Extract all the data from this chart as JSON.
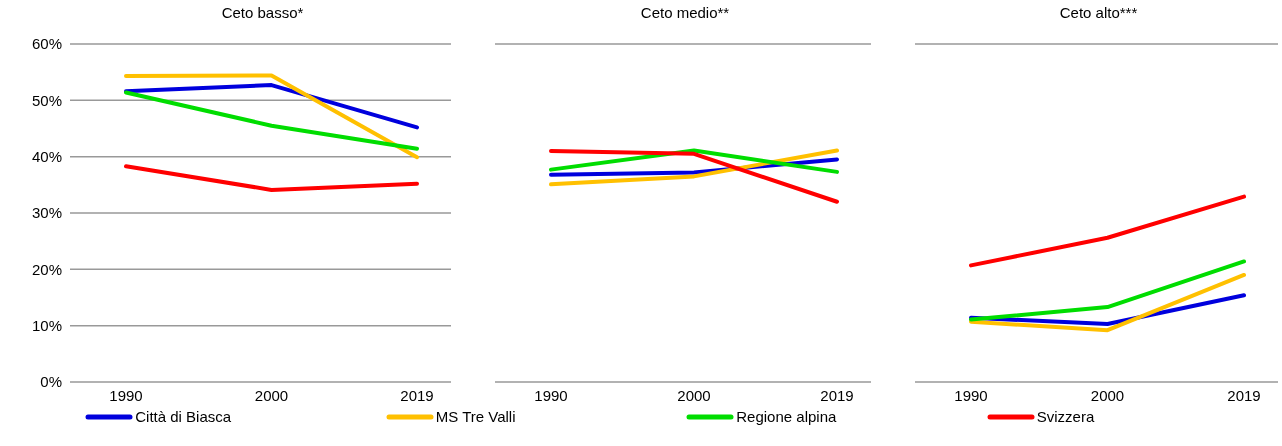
{
  "chart_data": [
    {
      "type": "line",
      "title": "Ceto basso*",
      "categories": [
        "1990",
        "2000",
        "2019"
      ],
      "series": [
        {
          "name": "Città di Biasca",
          "color": "#0000dd",
          "values": [
            51.6,
            52.7,
            45.2
          ]
        },
        {
          "name": "MS Tre Valli",
          "color": "#ffc000",
          "values": [
            54.3,
            54.4,
            39.9
          ]
        },
        {
          "name": "Regione alpina",
          "color": "#00dd00",
          "values": [
            51.4,
            45.5,
            41.4
          ]
        },
        {
          "name": "Svizzera",
          "color": "#ff0000",
          "values": [
            38.3,
            34.1,
            35.2
          ]
        }
      ],
      "ylim": [
        0,
        60
      ],
      "yticks": [
        {
          "value": 0,
          "label": "0%"
        },
        {
          "value": 10,
          "label": "10%"
        },
        {
          "value": 20,
          "label": "20%"
        },
        {
          "value": 30,
          "label": "30%"
        },
        {
          "value": 40,
          "label": "40%"
        },
        {
          "value": 50,
          "label": "50%"
        },
        {
          "value": 60,
          "label": "60%"
        }
      ],
      "grid": "y",
      "legend": "bottom",
      "marker": "none",
      "line_style": "solid"
    },
    {
      "type": "line",
      "title": "Ceto medio**",
      "categories": [
        "1990",
        "2000",
        "2019"
      ],
      "series": [
        {
          "color": "#0000dd",
          "values": [
            36.8,
            37.2,
            39.5
          ]
        },
        {
          "color": "#ffc000",
          "values": [
            35.1,
            36.5,
            41.1
          ]
        },
        {
          "color": "#00dd00",
          "values": [
            37.7,
            41.1,
            37.3
          ]
        },
        {
          "color": "#ff0000",
          "values": [
            41.0,
            40.5,
            32.0
          ]
        }
      ],
      "ylim": [
        0,
        60
      ],
      "yticks": [
        {
          "value": 0,
          "label": null
        },
        {
          "value": 10,
          "label": null
        },
        {
          "value": 20,
          "label": null
        },
        {
          "value": 30,
          "label": null
        },
        {
          "value": 40,
          "label": null
        },
        {
          "value": 50,
          "label": null
        },
        {
          "value": 60,
          "label": null
        }
      ],
      "grid": "y",
      "marker": "none",
      "line_style": "solid",
      "tick_labels": "x"
    },
    {
      "type": "line",
      "title": "Ceto alto***",
      "categories": [
        "1990",
        "2000",
        "2019"
      ],
      "series": [
        {
          "color": "#0000dd",
          "values": [
            11.4,
            10.3,
            15.4
          ]
        },
        {
          "color": "#ffc000",
          "values": [
            10.7,
            9.2,
            19.0
          ]
        },
        {
          "color": "#00dd00",
          "values": [
            11.1,
            13.3,
            21.4
          ]
        },
        {
          "color": "#ff0000",
          "values": [
            20.7,
            25.6,
            32.9
          ]
        }
      ],
      "ylim": [
        0,
        60
      ],
      "yticks": [
        {
          "value": 0,
          "label": null
        },
        {
          "value": 10,
          "label": null
        },
        {
          "value": 20,
          "label": null
        },
        {
          "value": 30,
          "label": null
        },
        {
          "value": 40,
          "label": null
        },
        {
          "value": 50,
          "label": null
        },
        {
          "value": 60,
          "label": null
        }
      ],
      "grid": "y",
      "marker": "none",
      "line_style": "solid",
      "tick_labels": "x"
    }
  ]
}
